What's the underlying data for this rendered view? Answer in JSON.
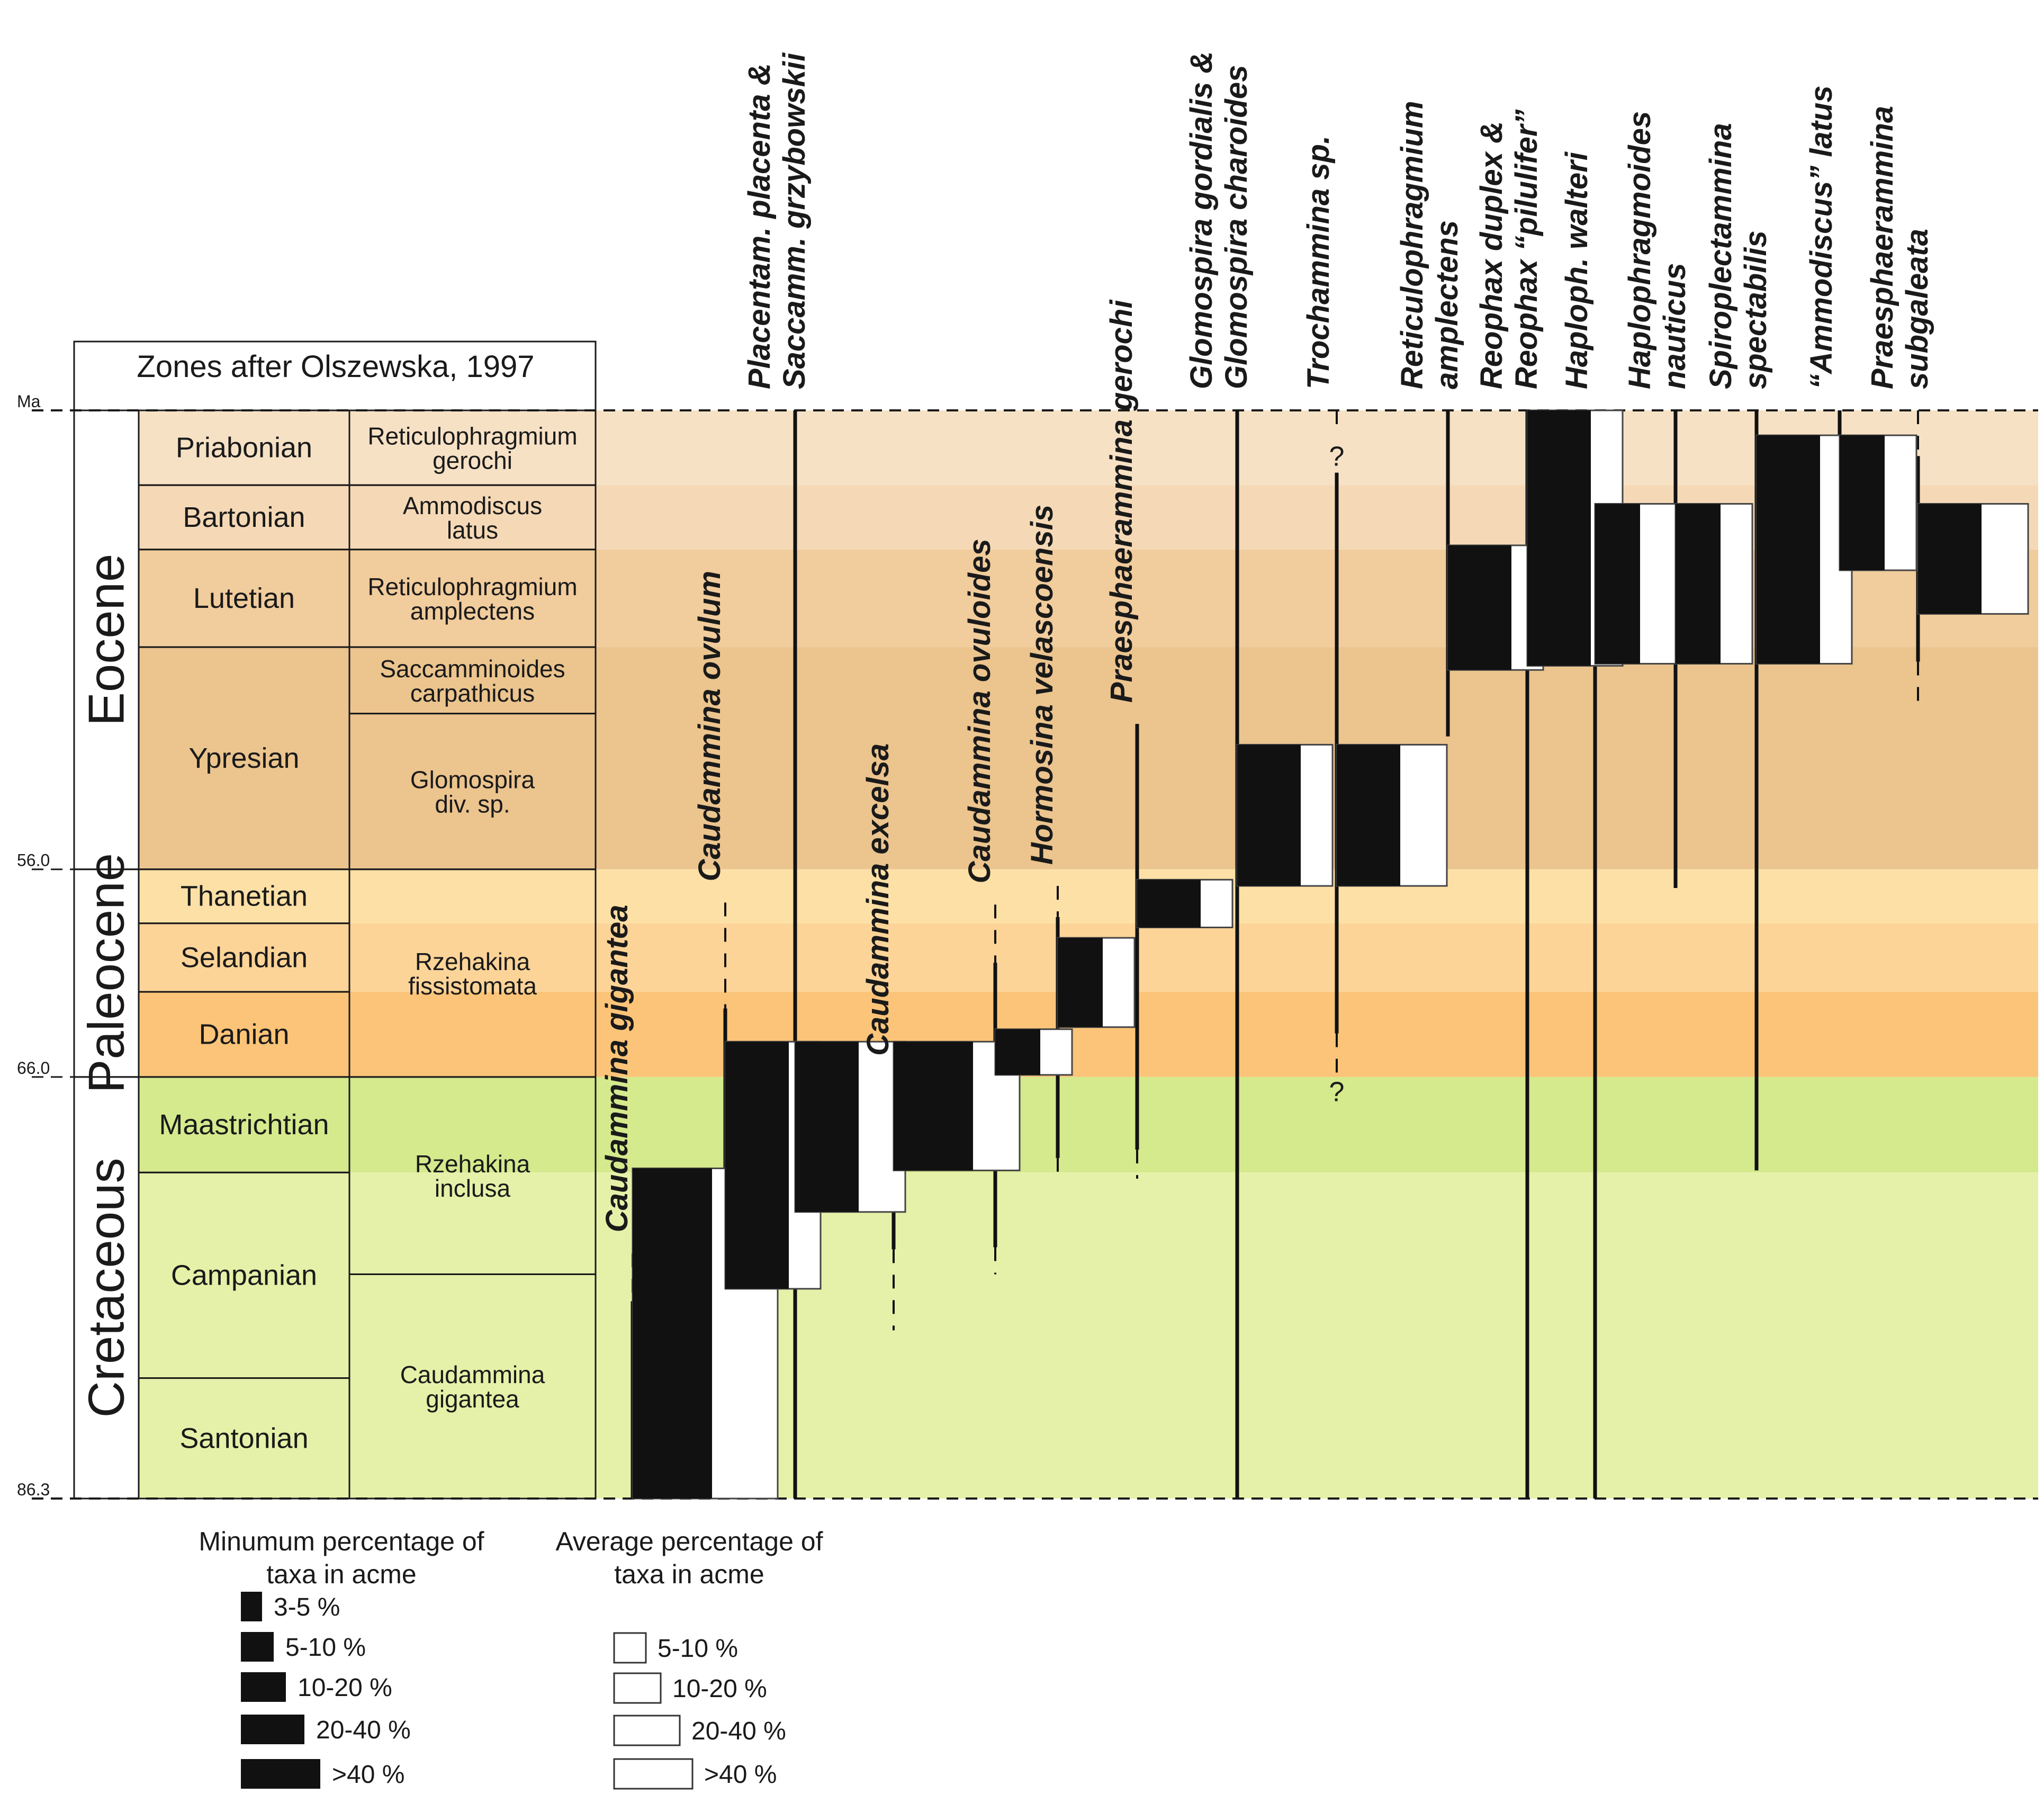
{
  "header": {
    "title": "Zones after Olszewska, 1997"
  },
  "time_scale": {
    "unit": "Ma",
    "ticks": [
      {
        "label": "Ma",
        "age": 33.9
      },
      {
        "label": "56.0",
        "age": 56.0
      },
      {
        "label": "66.0",
        "age": 66.0
      },
      {
        "label": "86.3",
        "age": 86.3
      }
    ],
    "top_age": 33.9,
    "bottom_age": 86.3
  },
  "epochs": [
    {
      "name": "Eocene",
      "from": 33.9,
      "to": 56.0
    },
    {
      "name": "Paleocene",
      "from": 56.0,
      "to": 66.0
    },
    {
      "name": "Cretaceous",
      "from": 66.0,
      "to": 86.3
    }
  ],
  "stages": [
    {
      "name": "Priabonian",
      "from": 33.9,
      "to": 37.5,
      "color": "#f7e1c5"
    },
    {
      "name": "Bartonian",
      "from": 37.5,
      "to": 40.6,
      "color": "#f5d9b6"
    },
    {
      "name": "Lutetian",
      "from": 40.6,
      "to": 45.3,
      "color": "#f1cc9c"
    },
    {
      "name": "Ypresian",
      "from": 45.3,
      "to": 56.0,
      "color": "#ebc48e"
    },
    {
      "name": "Thanetian",
      "from": 56.0,
      "to": 58.6,
      "color": "#fde0a6"
    },
    {
      "name": "Selandian",
      "from": 58.6,
      "to": 61.9,
      "color": "#fdd498"
    },
    {
      "name": "Danian",
      "from": 61.9,
      "to": 66.0,
      "color": "#fbc478"
    },
    {
      "name": "Maastrichtian",
      "from": 66.0,
      "to": 70.6,
      "color": "#d5e98d"
    },
    {
      "name": "Campanian",
      "from": 70.6,
      "to": 80.5,
      "color": "#e5f1a8"
    },
    {
      "name": "Santonian",
      "from": 80.5,
      "to": 86.3,
      "color": "#e5f1a8"
    }
  ],
  "zones": [
    {
      "name": "Reticulophragmium gerochi",
      "lines": [
        "Reticulophragmium",
        "gerochi"
      ],
      "from": 33.9,
      "to": 37.5
    },
    {
      "name": "Ammodiscus latus",
      "lines": [
        "Ammodiscus",
        "latus"
      ],
      "from": 37.5,
      "to": 40.6
    },
    {
      "name": "Reticulophragmium amplectens",
      "lines": [
        "Reticulophragmium",
        "amplectens"
      ],
      "from": 40.6,
      "to": 45.3
    },
    {
      "name": "Saccamminoides carpathicus",
      "lines": [
        "Saccamminoides",
        "carpathicus"
      ],
      "from": 45.3,
      "to": 48.5
    },
    {
      "name": "Glomospira div. sp.",
      "lines": [
        "Glomospira",
        "div. sp."
      ],
      "from": 48.5,
      "to": 56.0
    },
    {
      "name": "Rzehakina fissistomata",
      "lines": [
        "Rzehakina",
        "fissistomata"
      ],
      "from": 56.0,
      "to": 66.0
    },
    {
      "name": "Rzehakina inclusa",
      "lines": [
        "Rzehakina",
        "inclusa"
      ],
      "from": 66.0,
      "to": 75.5
    },
    {
      "name": "Caudammina gigantea",
      "lines": [
        "Caudammina",
        "gigantea"
      ],
      "from": 75.5,
      "to": 86.3
    }
  ],
  "taxa": [
    {
      "name": "Caudammina gigantea",
      "lines": [
        "Caudammina gigantea"
      ],
      "label_pos": "inside",
      "range": [
        {
          "from": 74.5,
          "to": 76.8,
          "style": "dashed"
        },
        {
          "from": 76.8,
          "to": 86.3,
          "style": "solid"
        }
      ],
      "acme": {
        "from": 70.4,
        "to": 86.3,
        "min_percent_class": ">40 %",
        "avg_percent_class": "20-40 %"
      }
    },
    {
      "name": "Caudammina ovulum",
      "lines": [
        "Caudammina ovulum"
      ],
      "label_pos": "inside",
      "range": [
        {
          "from": 57.6,
          "to": 62.7,
          "style": "dashed"
        },
        {
          "from": 62.7,
          "to": 86.3,
          "style": "solid"
        }
      ],
      "acme": {
        "from": 64.3,
        "to": 76.2,
        "min_percent_class": "20-40 %",
        "avg_percent_class": "5-10 %"
      }
    },
    {
      "name": "Placentam. placenta & Saccamm. grzybowskii",
      "lines": [
        "Placentam. placenta &",
        "Saccamm. grzybowskii"
      ],
      "label_pos": "top",
      "range": [
        {
          "from": 33.9,
          "to": 86.3,
          "style": "solid"
        }
      ],
      "acme": {
        "from": 64.3,
        "to": 72.5,
        "min_percent_class": "20-40 %",
        "avg_percent_class": "10-20 %"
      }
    },
    {
      "name": "Caudammina excelsa",
      "lines": [
        "Caudammina excelsa"
      ],
      "label_pos": "inside",
      "range": [
        {
          "from": 66.0,
          "to": 74.3,
          "style": "solid"
        },
        {
          "from": 74.3,
          "to": 78.2,
          "style": "dashed"
        }
      ],
      "acme": {
        "from": 64.3,
        "to": 70.5,
        "min_percent_class": ">40 %",
        "avg_percent_class": "10-20 %"
      }
    },
    {
      "name": "Caudammina ovuloides",
      "lines": [
        "Caudammina ovuloides"
      ],
      "label_pos": "inside",
      "range": [
        {
          "from": 57.7,
          "to": 60.5,
          "style": "dashed"
        },
        {
          "from": 60.5,
          "to": 74.2,
          "style": "solid"
        },
        {
          "from": 74.2,
          "to": 75.5,
          "style": "dashed"
        }
      ],
      "acme": {
        "from": 63.7,
        "to": 65.9,
        "min_percent_class": "10-20 %",
        "avg_percent_class": "5-10 %"
      }
    },
    {
      "name": "Hormosina velascoensis",
      "lines": [
        "Hormosina velascoensis"
      ],
      "label_pos": "inside",
      "range": [
        {
          "from": 56.8,
          "to": 58.3,
          "style": "dashed"
        },
        {
          "from": 58.3,
          "to": 69.9,
          "style": "solid"
        },
        {
          "from": 69.9,
          "to": 70.9,
          "style": "dashed"
        }
      ],
      "acme": {
        "from": 59.3,
        "to": 63.6,
        "min_percent_class": "10-20 %",
        "avg_percent_class": "5-10 %"
      }
    },
    {
      "name": "Praesphaerammina gerochi",
      "lines": [
        "Praesphaerammina gerochi"
      ],
      "label_pos": "inside",
      "range": [
        {
          "from": 49.0,
          "to": 69.5,
          "style": "solid"
        },
        {
          "from": 69.5,
          "to": 70.9,
          "style": "dashed"
        }
      ],
      "acme": {
        "from": 56.5,
        "to": 58.8,
        "min_percent_class": "20-40 %",
        "avg_percent_class": "5-10 %"
      }
    },
    {
      "name": "Glomospira gordialis & Glomospira charoides",
      "lines": [
        "Glomospira gordialis &",
        "Glomospira charoides"
      ],
      "label_pos": "top",
      "range": [
        {
          "from": 33.9,
          "to": 86.3,
          "style": "solid"
        }
      ],
      "acme": {
        "from": 50.0,
        "to": 56.8,
        "min_percent_class": "20-40 %",
        "avg_percent_class": "5-10 %"
      }
    },
    {
      "name": "Trochammina sp.",
      "lines": [
        "Trochammina sp."
      ],
      "label_pos": "top",
      "range": [
        {
          "from": 33.9,
          "to": 35.0,
          "style": "dashed"
        },
        {
          "from": 36.9,
          "to": 63.9,
          "style": "solid"
        },
        {
          "from": 63.9,
          "to": 66.0,
          "style": "dashed"
        }
      ],
      "question_marks": [
        {
          "symbol": "?",
          "age": 36.1
        },
        {
          "symbol": "?",
          "age": 66.7
        }
      ],
      "acme": {
        "from": 50.0,
        "to": 56.8,
        "min_percent_class": "20-40 %",
        "avg_percent_class": "10-20 %"
      }
    },
    {
      "name": "Reticulophragmium amplectens",
      "lines": [
        "Reticulophragmium",
        "amplectens"
      ],
      "label_pos": "top",
      "range": [
        {
          "from": 33.9,
          "to": 49.6,
          "style": "solid"
        }
      ],
      "acme": {
        "from": 40.4,
        "to": 46.4,
        "min_percent_class": "20-40 %",
        "avg_percent_class": "5-10 %"
      }
    },
    {
      "name": "Reophax duplex & Reophax “pilulifer”",
      "lines": [
        "Reophax duplex &",
        "Reophax “pilulifer”"
      ],
      "label_pos": "top",
      "range": [
        {
          "from": 33.9,
          "to": 86.3,
          "style": "solid"
        }
      ],
      "acme": {
        "from": 33.9,
        "to": 46.2,
        "min_percent_class": "20-40 %",
        "avg_percent_class": "5-10 %"
      }
    },
    {
      "name": "Haploph. walteri",
      "lines": [
        "Haploph. walteri"
      ],
      "label_pos": "top",
      "range": [
        {
          "from": 33.9,
          "to": 86.3,
          "style": "solid"
        }
      ],
      "acme": {
        "from": 38.4,
        "to": 46.1,
        "min_percent_class": "10-20 %",
        "avg_percent_class": "10-20 %"
      }
    },
    {
      "name": "Haplophragmoides nauticus",
      "lines": [
        "Haplophragmoides",
        "nauticus"
      ],
      "label_pos": "top",
      "range": [
        {
          "from": 33.9,
          "to": 56.9,
          "style": "solid"
        }
      ],
      "acme": {
        "from": 38.4,
        "to": 46.1,
        "min_percent_class": "10-20 %",
        "avg_percent_class": "5-10 %"
      }
    },
    {
      "name": "Spiroplectammina spectabilis",
      "lines": [
        "Spiroplectammina",
        "spectabilis"
      ],
      "label_pos": "top",
      "range": [
        {
          "from": 33.9,
          "to": 70.5,
          "style": "solid"
        }
      ],
      "acme": {
        "from": 35.1,
        "to": 46.1,
        "min_percent_class": "20-40 %",
        "avg_percent_class": "5-10 %"
      }
    },
    {
      "name": "“Ammodiscus” latus",
      "lines": [
        "“Ammodiscus” latus"
      ],
      "label_pos": "top",
      "range": [
        {
          "from": 33.9,
          "to": 42.3,
          "style": "solid"
        }
      ],
      "acme": {
        "from": 35.1,
        "to": 41.6,
        "min_percent_class": "10-20 %",
        "avg_percent_class": "5-10 %"
      }
    },
    {
      "name": "Praesphaerammina subgaleata",
      "lines": [
        "Praesphaerammina",
        "subgaleata"
      ],
      "label_pos": "top",
      "range": [
        {
          "from": 33.9,
          "to": 36.1,
          "style": "dashed"
        },
        {
          "from": 36.1,
          "to": 46.0,
          "style": "solid"
        },
        {
          "from": 46.0,
          "to": 48.0,
          "style": "dashed"
        }
      ],
      "acme": {
        "from": 38.4,
        "to": 43.7,
        "min_percent_class": "20-40 %",
        "avg_percent_class": "10-20 %"
      }
    }
  ],
  "legend": {
    "min_title": [
      "Minumum percentage of",
      "taxa in acme"
    ],
    "avg_title": [
      "Average percentage of",
      "taxa in acme"
    ],
    "min_classes": [
      "3-5 %",
      "5-10 %",
      "10-20 %",
      "20-40 %",
      ">40 %"
    ],
    "avg_classes": [
      "5-10 %",
      "10-20 %",
      "20-40 %",
      ">40 %"
    ]
  }
}
